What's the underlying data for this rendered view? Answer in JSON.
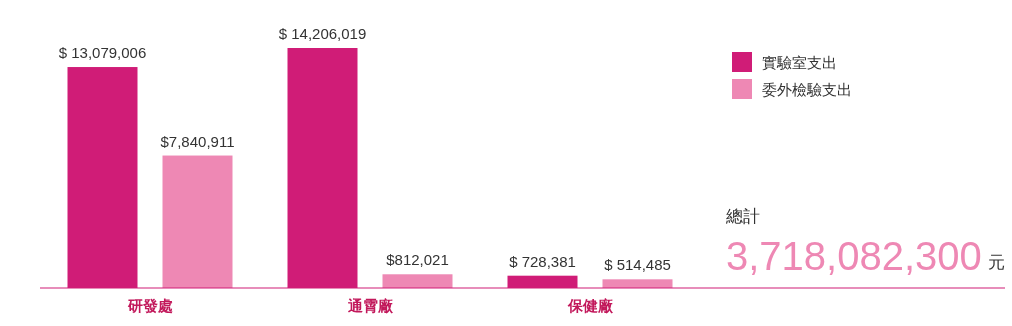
{
  "chart_data": {
    "type": "bar",
    "categories": [
      "研發處",
      "通霄廠",
      "保健廠"
    ],
    "series": [
      {
        "name": "實驗室支出",
        "color": "#d01c77",
        "values": [
          13079006,
          14206019,
          728381
        ],
        "value_labels": [
          "$ 13,079,006",
          "$ 14,206,019",
          "$ 728,381"
        ]
      },
      {
        "name": "委外檢驗支出",
        "color": "#ee88b4",
        "values": [
          7840911,
          812021,
          514485
        ],
        "value_labels": [
          "$7,840,911",
          "$812,021",
          "$ 514,485"
        ]
      }
    ],
    "legend": "top right",
    "annotations": [
      "總計",
      "3,718,082,300",
      "元"
    ]
  }
}
